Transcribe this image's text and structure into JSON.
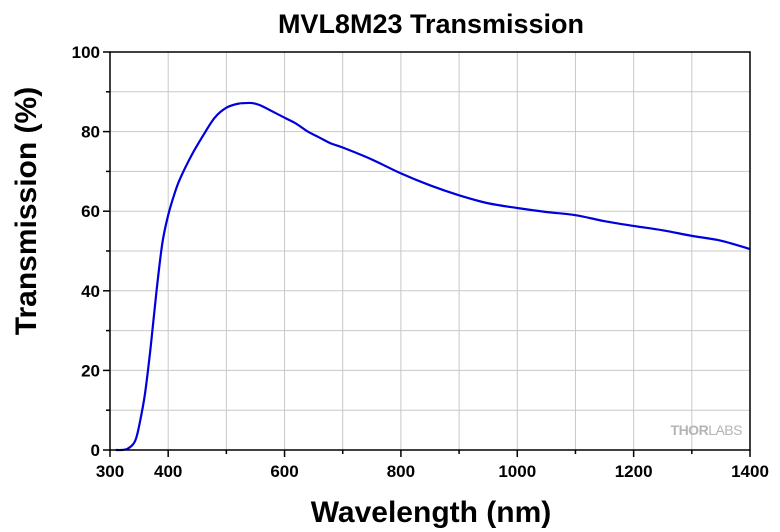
{
  "chart_data": {
    "type": "line",
    "title": "MVL8M23 Transmission",
    "xlabel": "Wavelength (nm)",
    "ylabel": "Transmission (%)",
    "xlim": [
      300,
      1400
    ],
    "ylim": [
      0,
      100
    ],
    "xticks": [
      300,
      400,
      600,
      800,
      1000,
      1200,
      1400
    ],
    "yticks": [
      0,
      20,
      40,
      60,
      80,
      100
    ],
    "grid": true,
    "watermark": {
      "part1": "THOR",
      "part2": "LABS"
    },
    "series": [
      {
        "color": "#0000dd",
        "x": [
          310,
          320,
          330,
          340,
          345,
          350,
          360,
          370,
          380,
          390,
          400,
          410,
          420,
          440,
          460,
          480,
          500,
          520,
          540,
          550,
          560,
          580,
          600,
          620,
          640,
          660,
          680,
          700,
          750,
          800,
          850,
          900,
          950,
          1000,
          1050,
          1100,
          1150,
          1200,
          1250,
          1300,
          1350,
          1400
        ],
        "y": [
          0,
          0,
          0.3,
          1.5,
          3,
          6,
          14,
          26,
          40,
          52,
          59,
          64,
          68,
          74,
          79,
          83.5,
          86,
          87,
          87.2,
          87,
          86.5,
          85,
          83.5,
          82,
          80,
          78.5,
          77,
          76,
          73,
          69.5,
          66.5,
          64,
          62,
          60.8,
          59.8,
          59,
          57.5,
          56.3,
          55.2,
          53.8,
          52.6,
          50.5
        ]
      }
    ]
  }
}
